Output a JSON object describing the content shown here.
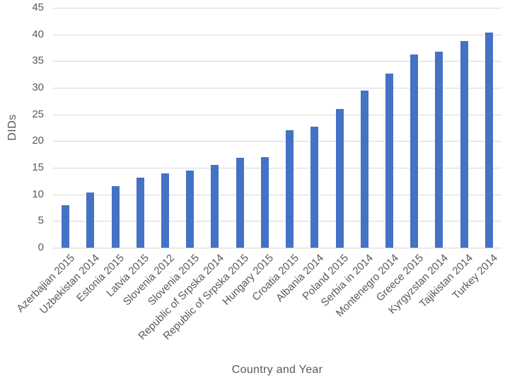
{
  "chart_data": {
    "type": "bar",
    "title": "",
    "xlabel": "Country and Year",
    "ylabel": "DIDs",
    "ylim": [
      0,
      45
    ],
    "ytick_step": 5,
    "yticks": [
      0,
      5,
      10,
      15,
      20,
      25,
      30,
      35,
      40,
      45
    ],
    "grid": true,
    "legend": false,
    "categories": [
      "Azerbajian 2015",
      "Uzbekistan 2014",
      "Estonia 2015",
      "Latvia 2015",
      "Slovenia 2012",
      "Slovenia 2015",
      "Republic of Srpska 2014",
      "Republic of Srpska 2015",
      "Hungary 2015",
      "Croatia 2015",
      "Albania 2014",
      "Poland 2015",
      "Serbia in 2014",
      "Montenegro 2014",
      "Greece 2015",
      "Kyrgyzstan 2014",
      "Tajikistan 2014",
      "Turkey 2014"
    ],
    "values": [
      8.0,
      10.3,
      11.5,
      13.2,
      14.0,
      14.5,
      15.5,
      16.8,
      17.0,
      22.0,
      22.7,
      26.0,
      29.5,
      32.6,
      36.2,
      36.8,
      38.7,
      40.3
    ],
    "colors": {
      "bar": "#4472C4",
      "gridline": "#D9D9D9",
      "axis_line": "#D6D6D6",
      "text": "#595959"
    }
  }
}
